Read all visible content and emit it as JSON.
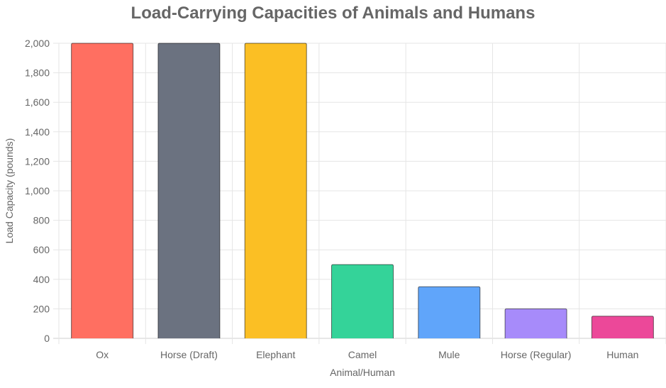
{
  "chart_data": {
    "type": "bar",
    "title": "Load-Carrying Capacities of Animals and Humans",
    "xlabel": "Animal/Human",
    "ylabel": "Load Capacity (pounds)",
    "categories": [
      "Ox",
      "Horse (Draft)",
      "Elephant",
      "Camel",
      "Mule",
      "Horse (Regular)",
      "Human"
    ],
    "values": [
      2000,
      2000,
      2000,
      500,
      350,
      200,
      150
    ],
    "colors": [
      "#ff6f61",
      "#6b7280",
      "#fbbf24",
      "#34d399",
      "#60a5fa",
      "#a78bfa",
      "#ec4899"
    ],
    "ylim": [
      0,
      2000
    ],
    "yticks": [
      "0",
      "200",
      "400",
      "600",
      "800",
      "1,000",
      "1,200",
      "1,400",
      "1,600",
      "1,800",
      "2,000"
    ],
    "grid": true,
    "legend": "none"
  }
}
